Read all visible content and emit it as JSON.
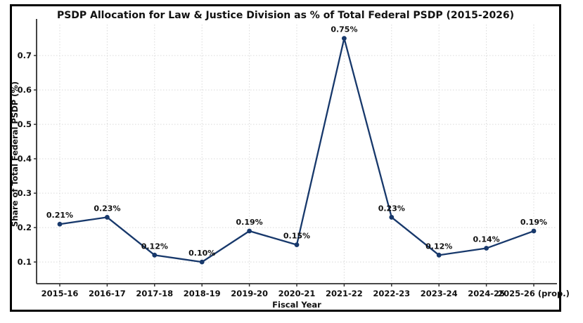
{
  "figure": {
    "title": "PSDP Allocation for Law & Justice Division as % of Total Federal PSDP (2015-2026)"
  },
  "chart_data": {
    "type": "line",
    "title": "PSDP Allocation for Law & Justice Division as % of Total Federal PSDP (2015-2026)",
    "xlabel": "Fiscal Year",
    "ylabel": "Share of Total Federal PSDP (%)",
    "categories": [
      "2015-16",
      "2016-17",
      "2017-18",
      "2018-19",
      "2019-20",
      "2020-21",
      "2021-22",
      "2022-23",
      "2023-24",
      "2024-25",
      "2025-26 (prop.)"
    ],
    "values": [
      0.21,
      0.23,
      0.12,
      0.1,
      0.19,
      0.15,
      0.75,
      0.23,
      0.12,
      0.14,
      0.19
    ],
    "point_labels": [
      "0.21%",
      "0.23%",
      "0.12%",
      "0.10%",
      "0.19%",
      "0.15%",
      "0.75%",
      "0.23%",
      "0.12%",
      "0.14%",
      "0.19%"
    ],
    "yticks": [
      0.1,
      0.2,
      0.3,
      0.4,
      0.5,
      0.6,
      0.7
    ],
    "ylim": [
      0.037,
      0.79
    ],
    "grid": "dotted-both-axes",
    "legend": "none",
    "line_color": "#17386b",
    "marker_color": "#17386b",
    "grid_color": "#d9d9d9",
    "spine_color": "#2f2f2f",
    "text_color": "#111111",
    "background": "#ffffff",
    "frame_color": "#000000"
  }
}
